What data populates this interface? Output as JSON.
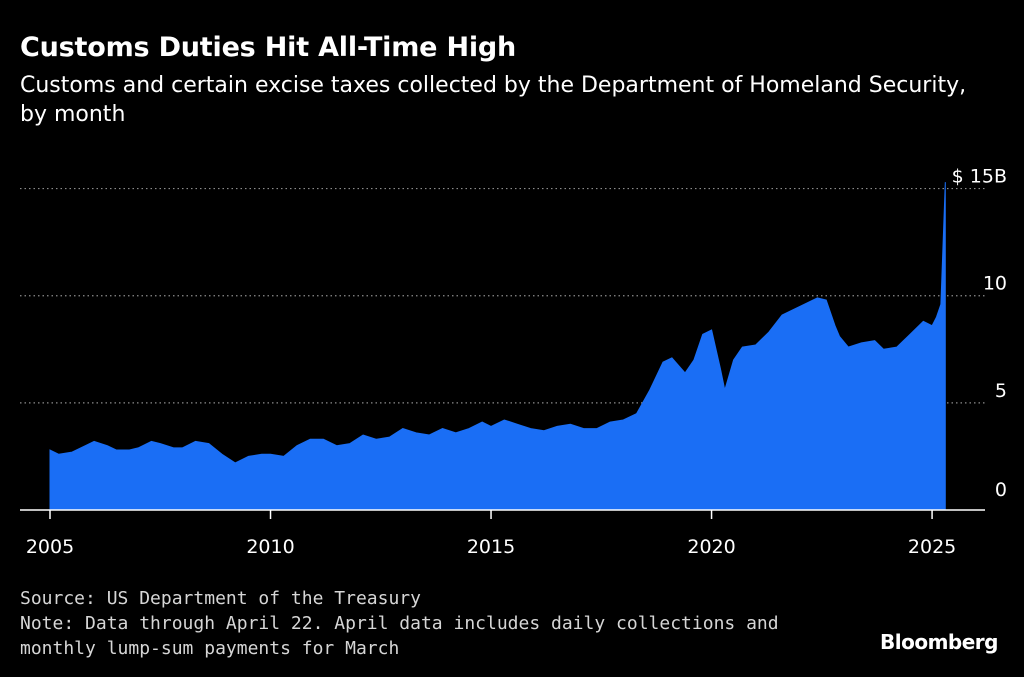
{
  "title": "Customs Duties Hit All-Time High",
  "subtitle": "Customs and certain excise taxes collected by the Department of Homeland Security, by month",
  "source": "Source: US Department of the Treasury",
  "note_line1": "Note: Data through April 22. April data includes daily collections and",
  "note_line2": "monthly lump-sum payments for March",
  "brand": "Bloomberg",
  "colors": {
    "background": "#000000",
    "area": "#1a6ef5",
    "grid": "#8c8c8c",
    "text": "#ffffff"
  },
  "chart_data": {
    "type": "area",
    "title": "Customs Duties Hit All-Time High",
    "ylabel": "",
    "xlabel": "",
    "xlim": [
      2005,
      2026.9
    ],
    "ylim": [
      0,
      15.4
    ],
    "yticks": [
      0,
      5,
      10,
      15
    ],
    "ytick_labels": [
      "0",
      "5",
      "10",
      "$ 15B"
    ],
    "xticks": [
      2005,
      2010,
      2015,
      2020,
      2025
    ],
    "xtick_labels": [
      "2005",
      "2010",
      "2015",
      "2020",
      "2025"
    ],
    "grid": "dotted horizontal",
    "legend": "none",
    "series": [
      {
        "points": [
          [
            2005.0,
            2.8
          ],
          [
            2005.2,
            2.6
          ],
          [
            2005.5,
            2.7
          ],
          [
            2005.8,
            3.0
          ],
          [
            2006.0,
            3.2
          ],
          [
            2006.3,
            3.0
          ],
          [
            2006.5,
            2.8
          ],
          [
            2006.8,
            2.8
          ],
          [
            2007.0,
            2.9
          ],
          [
            2007.3,
            3.2
          ],
          [
            2007.5,
            3.1
          ],
          [
            2007.8,
            2.9
          ],
          [
            2008.0,
            2.9
          ],
          [
            2008.3,
            3.2
          ],
          [
            2008.6,
            3.1
          ],
          [
            2008.9,
            2.6
          ],
          [
            2009.2,
            2.2
          ],
          [
            2009.5,
            2.5
          ],
          [
            2009.8,
            2.6
          ],
          [
            2010.0,
            2.6
          ],
          [
            2010.3,
            2.5
          ],
          [
            2010.6,
            3.0
          ],
          [
            2010.9,
            3.3
          ],
          [
            2011.2,
            3.3
          ],
          [
            2011.5,
            3.0
          ],
          [
            2011.8,
            3.1
          ],
          [
            2012.1,
            3.5
          ],
          [
            2012.4,
            3.3
          ],
          [
            2012.7,
            3.4
          ],
          [
            2013.0,
            3.8
          ],
          [
            2013.3,
            3.6
          ],
          [
            2013.6,
            3.5
          ],
          [
            2013.9,
            3.8
          ],
          [
            2014.2,
            3.6
          ],
          [
            2014.5,
            3.8
          ],
          [
            2014.8,
            4.1
          ],
          [
            2015.0,
            3.9
          ],
          [
            2015.3,
            4.2
          ],
          [
            2015.6,
            4.0
          ],
          [
            2015.9,
            3.8
          ],
          [
            2016.2,
            3.7
          ],
          [
            2016.5,
            3.9
          ],
          [
            2016.8,
            4.0
          ],
          [
            2017.1,
            3.8
          ],
          [
            2017.4,
            3.8
          ],
          [
            2017.7,
            4.1
          ],
          [
            2018.0,
            4.2
          ],
          [
            2018.3,
            4.5
          ],
          [
            2018.6,
            5.6
          ],
          [
            2018.9,
            6.9
          ],
          [
            2019.1,
            7.1
          ],
          [
            2019.4,
            6.4
          ],
          [
            2019.6,
            7.0
          ],
          [
            2019.8,
            8.2
          ],
          [
            2020.0,
            8.4
          ],
          [
            2020.2,
            6.6
          ],
          [
            2020.3,
            5.6
          ],
          [
            2020.5,
            7.0
          ],
          [
            2020.7,
            7.6
          ],
          [
            2021.0,
            7.7
          ],
          [
            2021.3,
            8.3
          ],
          [
            2021.6,
            9.1
          ],
          [
            2021.9,
            9.4
          ],
          [
            2022.1,
            9.6
          ],
          [
            2022.4,
            9.9
          ],
          [
            2022.6,
            9.8
          ],
          [
            2022.8,
            8.6
          ],
          [
            2022.9,
            8.1
          ],
          [
            2023.1,
            7.6
          ],
          [
            2023.4,
            7.8
          ],
          [
            2023.7,
            7.9
          ],
          [
            2023.9,
            7.5
          ],
          [
            2024.2,
            7.6
          ],
          [
            2024.5,
            8.2
          ],
          [
            2024.8,
            8.8
          ],
          [
            2025.0,
            8.6
          ],
          [
            2025.1,
            9.0
          ],
          [
            2025.2,
            9.6
          ],
          [
            2025.3,
            15.3
          ]
        ]
      }
    ]
  }
}
